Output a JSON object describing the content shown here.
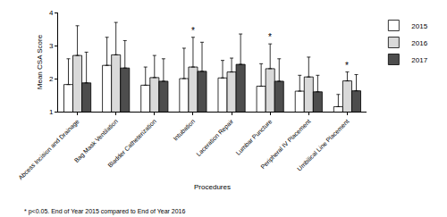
{
  "chart_data": {
    "type": "bar",
    "x_label": "Procedures",
    "y_label": "Mean CSA Score",
    "categories": [
      "Abcess Incision and Drainage",
      "Bag Mask Ventilation",
      "Bladder Catheterization",
      "Intubation",
      "Laceration Repair",
      "Lumbar Puncture",
      "Peripheral IV Placement",
      "Umbilical Line Placement"
    ],
    "series": [
      {
        "name": "2015",
        "color": "#ffffff",
        "values": [
          1.82,
          2.4,
          1.8,
          2.0,
          2.02,
          1.77,
          1.62,
          1.15
        ],
        "errors": [
          0.78,
          0.85,
          0.55,
          0.92,
          0.53,
          0.68,
          0.48,
          0.37
        ]
      },
      {
        "name": "2016",
        "color": "#d9d9d9",
        "values": [
          2.7,
          2.72,
          2.03,
          2.35,
          2.2,
          2.3,
          2.05,
          1.93
        ],
        "errors": [
          0.9,
          0.98,
          0.67,
          0.9,
          0.42,
          0.75,
          0.6,
          0.27
        ]
      },
      {
        "name": "2017",
        "color": "#4d4d4d",
        "values": [
          1.87,
          2.32,
          1.92,
          2.22,
          2.43,
          1.92,
          1.6,
          1.63
        ],
        "errors": [
          0.93,
          0.83,
          0.68,
          0.88,
          0.92,
          0.68,
          0.5,
          0.49
        ]
      }
    ],
    "ylim": [
      1,
      4
    ],
    "yticks": [
      1,
      2,
      3,
      4
    ],
    "grid": false,
    "legend": "right",
    "annotations": [
      {
        "category": "Intubation",
        "series": "2016",
        "text": "*"
      },
      {
        "category": "Lumbar Puncture",
        "series": "2016",
        "text": "*"
      },
      {
        "category": "Umbilical Line Placement",
        "series": "2016",
        "text": "*"
      }
    ],
    "note": "* p<0.05. End of Year 2015 compared to End of Year 2016"
  }
}
